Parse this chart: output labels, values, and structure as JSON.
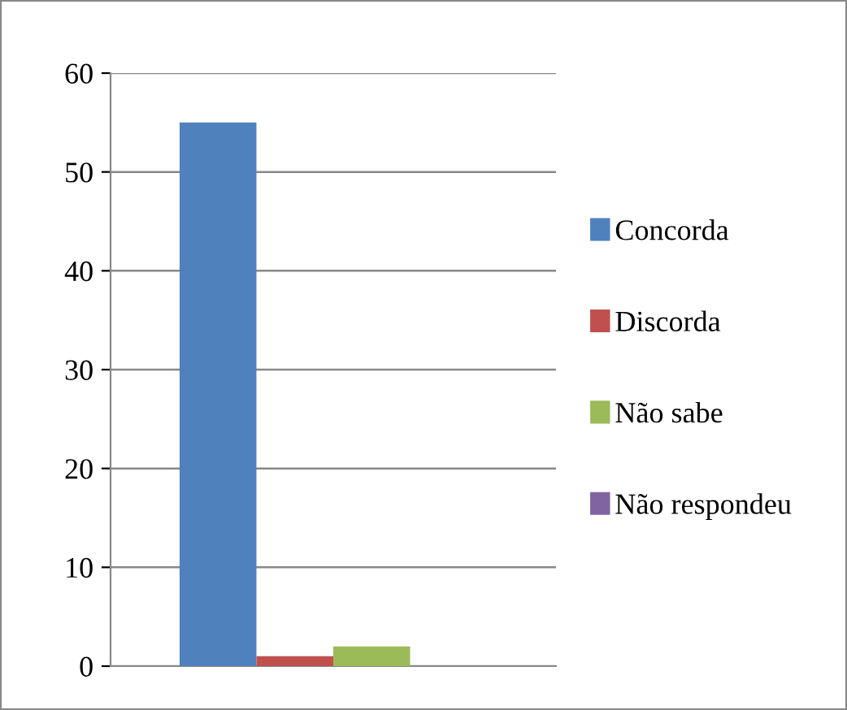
{
  "chart_data": {
    "type": "bar",
    "categories": [
      null
    ],
    "series": [
      {
        "name": "Concorda",
        "color": "#4f81bd",
        "values": [
          55
        ]
      },
      {
        "name": "Discorda",
        "color": "#c0504d",
        "values": [
          1
        ]
      },
      {
        "name": "Não sabe",
        "color": "#9bbb59",
        "values": [
          2
        ]
      },
      {
        "name": "Não respondeu",
        "color": "#8064a2",
        "values": [
          0
        ]
      }
    ],
    "ylim": [
      0,
      60
    ],
    "yticks": [
      0,
      10,
      20,
      30,
      40,
      50,
      60
    ],
    "grid": "y",
    "legend": "right"
  }
}
